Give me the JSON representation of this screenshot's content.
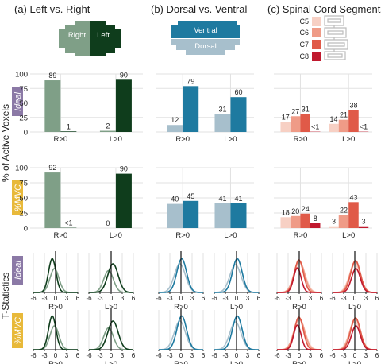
{
  "colors": {
    "lr_right": "#7f9f87",
    "lr_left": "#0f3d1c",
    "dv_ventral": "#1e7aa0",
    "dv_dorsal": "#a7bfcc",
    "c5": "#f7d0c4",
    "c6": "#ef9b87",
    "c7": "#e05a48",
    "c8": "#c0192e",
    "ideal_badge": "#8b79a6",
    "mvc_badge": "#e8b93a"
  },
  "panels": [
    {
      "title": "(a) Left vs. Right"
    },
    {
      "title": "(b) Dorsal vs. Ventral"
    },
    {
      "title": "(c) Spinal Cord Segments"
    }
  ],
  "schematic": {
    "lr_right": "Right",
    "lr_left": "Left",
    "dv_ventral": "Ventral",
    "dv_dorsal": "Dorsal",
    "segments": [
      "C5",
      "C6",
      "C7",
      "C8"
    ]
  },
  "rows": {
    "ideal": "Ideal",
    "mvc": "%MVC"
  },
  "ylabel_bars": "% of Active Voxels",
  "ylabel_dist": "T-Statistics",
  "chart_data": [
    {
      "id": "ideal-left-right",
      "type": "bar",
      "categories": [
        "R>0",
        "L>0"
      ],
      "series": [
        {
          "name": "Right",
          "values": [
            89,
            2
          ],
          "labels": [
            "89",
            "2"
          ]
        },
        {
          "name": "Left",
          "values": [
            1,
            90
          ],
          "labels": [
            "1",
            "90"
          ]
        }
      ],
      "ylim": [
        0,
        100
      ],
      "yticks": [
        "0",
        "25",
        "50",
        "75",
        "100"
      ]
    },
    {
      "id": "ideal-dorsal-ventral",
      "type": "bar",
      "categories": [
        "R>0",
        "L>0"
      ],
      "series": [
        {
          "name": "Dorsal",
          "values": [
            12,
            31
          ],
          "labels": [
            "12",
            "31"
          ]
        },
        {
          "name": "Ventral",
          "values": [
            79,
            60
          ],
          "labels": [
            "79",
            "60"
          ]
        }
      ],
      "ylim": [
        0,
        100
      ]
    },
    {
      "id": "ideal-segments",
      "type": "bar",
      "categories": [
        "R>0",
        "L>0"
      ],
      "series": [
        {
          "name": "C5",
          "values": [
            17,
            14
          ],
          "labels": [
            "17",
            "14"
          ]
        },
        {
          "name": "C6",
          "values": [
            27,
            21
          ],
          "labels": [
            "27",
            "21"
          ]
        },
        {
          "name": "C7",
          "values": [
            31,
            38
          ],
          "labels": [
            "31",
            "38"
          ]
        },
        {
          "name": "C8",
          "values": [
            0.5,
            0.5
          ],
          "labels": [
            "<1",
            "<1"
          ]
        }
      ],
      "ylim": [
        0,
        100
      ]
    },
    {
      "id": "mvc-left-right",
      "type": "bar",
      "categories": [
        "R>0",
        "L>0"
      ],
      "series": [
        {
          "name": "Right",
          "values": [
            92,
            0
          ],
          "labels": [
            "92",
            "0"
          ]
        },
        {
          "name": "Left",
          "values": [
            0.5,
            90
          ],
          "labels": [
            "<1",
            "90"
          ]
        }
      ],
      "ylim": [
        0,
        100
      ],
      "yticks": [
        "0",
        "25",
        "50",
        "75",
        "100"
      ]
    },
    {
      "id": "mvc-dorsal-ventral",
      "type": "bar",
      "categories": [
        "R>0",
        "L>0"
      ],
      "series": [
        {
          "name": "Dorsal",
          "values": [
            40,
            41
          ],
          "labels": [
            "40",
            "41"
          ]
        },
        {
          "name": "Ventral",
          "values": [
            45,
            41
          ],
          "labels": [
            "45",
            "41"
          ]
        }
      ],
      "ylim": [
        0,
        100
      ]
    },
    {
      "id": "mvc-segments",
      "type": "bar",
      "categories": [
        "R>0",
        "L>0"
      ],
      "series": [
        {
          "name": "C5",
          "values": [
            18,
            3
          ],
          "labels": [
            "18",
            "3"
          ]
        },
        {
          "name": "C6",
          "values": [
            20,
            22
          ],
          "labels": [
            "20",
            "22"
          ]
        },
        {
          "name": "C7",
          "values": [
            24,
            43
          ],
          "labels": [
            "24",
            "43"
          ]
        },
        {
          "name": "C8",
          "values": [
            8,
            3
          ],
          "labels": [
            "8",
            "3"
          ]
        }
      ],
      "ylim": [
        0,
        100
      ]
    },
    {
      "id": "t-statistic-distributions",
      "type": "line",
      "xlim": [
        -6,
        6
      ],
      "xticks": [
        "-6",
        "-3",
        "0",
        "3",
        "6"
      ],
      "categories": [
        "R>0",
        "L>0"
      ],
      "rows": [
        "ideal",
        "mvc"
      ],
      "panels": [
        {
          "id": "left-right",
          "curves": [
            {
              "name": "Right",
              "color": "lr_right",
              "R": {
                "mu": -0.3,
                "sd": 1.2,
                "h": 0.6
              },
              "L": {
                "mu": -0.7,
                "sd": 1.3,
                "h": 0.55
              }
            },
            {
              "name": "Left",
              "color": "lr_left",
              "R": {
                "mu": -0.9,
                "sd": 1.0,
                "h": 0.85
              },
              "L": {
                "mu": 0.5,
                "sd": 1.4,
                "h": 0.72
              }
            }
          ]
        },
        {
          "id": "dorsal-ventral",
          "curves": [
            {
              "name": "Dorsal",
              "color": "dv_dorsal",
              "R": {
                "mu": -0.3,
                "sd": 1.5,
                "h": 0.72
              },
              "L": {
                "mu": -0.3,
                "sd": 1.5,
                "h": 0.7
              }
            },
            {
              "name": "Ventral",
              "color": "dv_ventral",
              "R": {
                "mu": 0.2,
                "sd": 1.3,
                "h": 0.85
              },
              "L": {
                "mu": 0.2,
                "sd": 1.3,
                "h": 0.85
              }
            }
          ]
        },
        {
          "id": "segments",
          "curves": [
            {
              "name": "C5",
              "color": "c5",
              "R": {
                "mu": 0.1,
                "sd": 1.5,
                "h": 0.75
              },
              "L": {
                "mu": 0.0,
                "sd": 1.5,
                "h": 0.7
              }
            },
            {
              "name": "C6",
              "color": "c6",
              "R": {
                "mu": 0.0,
                "sd": 1.4,
                "h": 0.8
              },
              "L": {
                "mu": 0.1,
                "sd": 1.4,
                "h": 0.78
              }
            },
            {
              "name": "C7",
              "color": "c7",
              "R": {
                "mu": -0.1,
                "sd": 1.2,
                "h": 0.82
              },
              "L": {
                "mu": 0.2,
                "sd": 1.3,
                "h": 0.8
              }
            },
            {
              "name": "C8",
              "color": "c8",
              "R": {
                "mu": -0.5,
                "sd": 1.0,
                "h": 0.62
              },
              "L": {
                "mu": 0.3,
                "sd": 1.2,
                "h": 0.6
              }
            }
          ]
        }
      ]
    }
  ]
}
